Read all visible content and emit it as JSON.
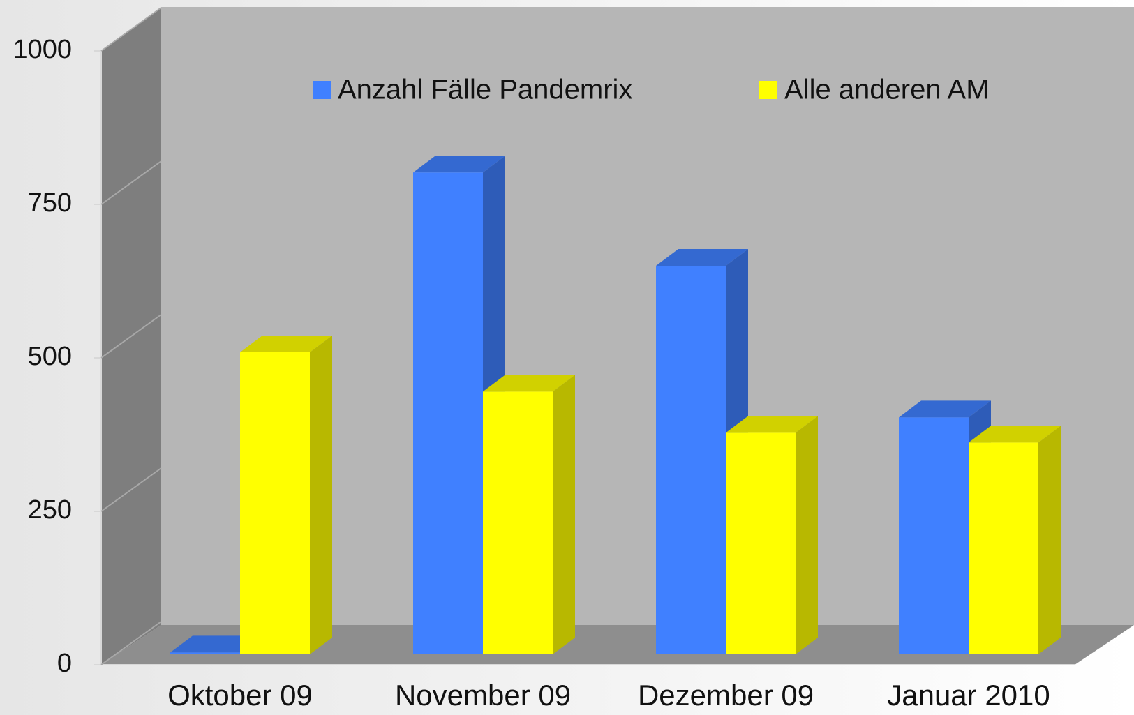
{
  "chart_data": {
    "type": "bar3d",
    "categories": [
      "Oktober 09",
      "November 09",
      "Dezember 09",
      "Januar 2010"
    ],
    "series": [
      {
        "name": "Anzahl Fälle Pandemrix",
        "color": "#4080ff",
        "values": [
          3,
          785,
          633,
          386
        ]
      },
      {
        "name": "Alle anderen AM",
        "color": "#ffff00",
        "values": [
          492,
          428,
          361,
          345
        ]
      }
    ],
    "ylim": [
      0,
      1000
    ],
    "yticks": [
      0,
      250,
      500,
      750,
      1000
    ],
    "legend": "top"
  }
}
